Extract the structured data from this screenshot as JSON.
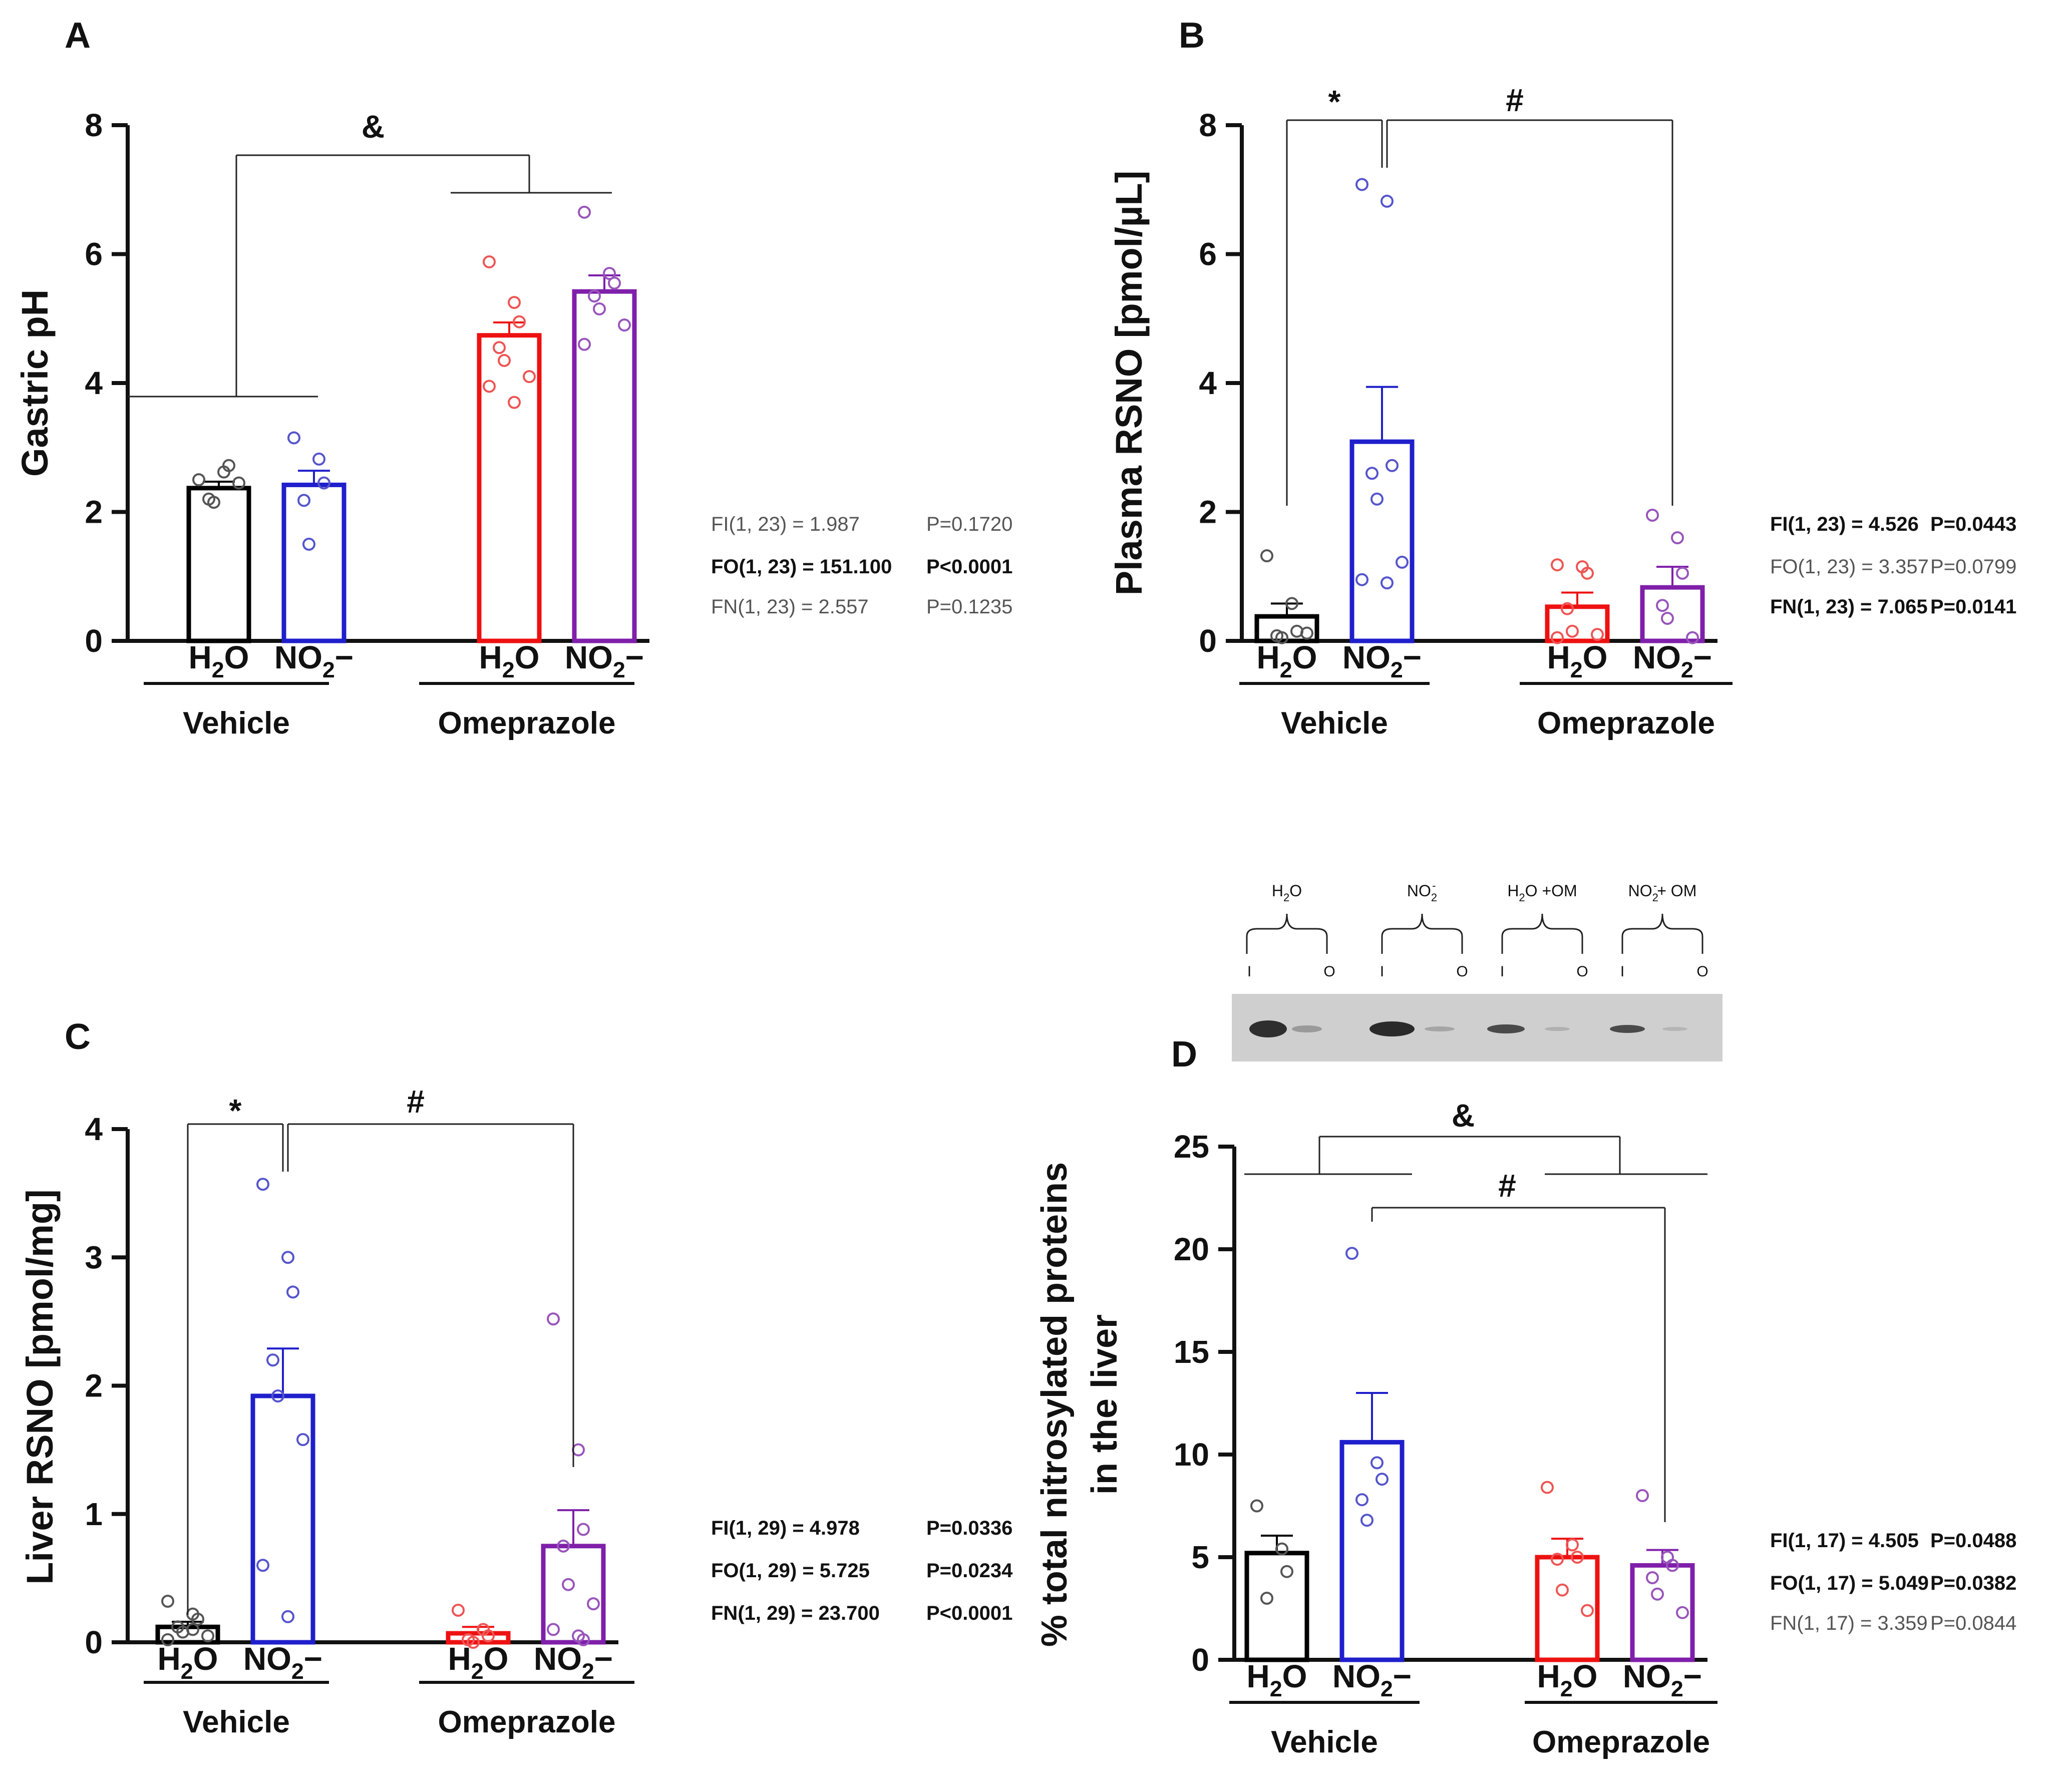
{
  "panels": [
    {
      "id": "A",
      "letter": "A",
      "ylabel": "Gastric pH",
      "yticks": [
        "0",
        "2",
        "4",
        "6",
        "8"
      ],
      "ylim": [
        0,
        8
      ],
      "groups": [
        {
          "label": "Vehicle",
          "bars": [
            {
              "label_main": "H",
              "label_sub": "2",
              "label_tail": "O"
            },
            {
              "label_main": "NO",
              "label_sub": "2",
              "label_tail": "−"
            }
          ]
        },
        {
          "label": "Omeprazole",
          "bars": [
            {
              "label_main": "H",
              "label_sub": "2",
              "label_tail": "O"
            },
            {
              "label_main": "NO",
              "label_sub": "2",
              "label_tail": "−"
            }
          ]
        }
      ],
      "significance": [
        {
          "symbol": "&"
        }
      ],
      "stats": [
        {
          "text": "FI(1, 23) = 1.987",
          "p": "P=0.1720",
          "bold": false
        },
        {
          "text": "FO(1, 23) = 151.100",
          "p": "P<0.0001",
          "bold": true
        },
        {
          "text": "FN(1, 23) = 2.557",
          "p": "P=0.1235",
          "bold": false
        }
      ]
    },
    {
      "id": "B",
      "letter": "B",
      "ylabel": "Plasma RSNO [pmol/µL]",
      "yticks": [
        "0",
        "2",
        "4",
        "6",
        "8"
      ],
      "ylim": [
        0,
        8
      ],
      "groups": [
        {
          "label": "Vehicle",
          "bars": [
            {
              "label_main": "H",
              "label_sub": "2",
              "label_tail": "O"
            },
            {
              "label_main": "NO",
              "label_sub": "2",
              "label_tail": "−"
            }
          ]
        },
        {
          "label": "Omeprazole",
          "bars": [
            {
              "label_main": "H",
              "label_sub": "2",
              "label_tail": "O"
            },
            {
              "label_main": "NO",
              "label_sub": "2",
              "label_tail": "−"
            }
          ]
        }
      ],
      "significance": [
        {
          "symbol": "*"
        },
        {
          "symbol": "#"
        }
      ],
      "stats": [
        {
          "text": "FI(1, 23) = 4.526",
          "p": "P=0.0443",
          "bold": true
        },
        {
          "text": "FO(1, 23) = 3.357",
          "p": "P=0.0799",
          "bold": false
        },
        {
          "text": "FN(1, 23) = 7.065",
          "p": "P=0.0141",
          "bold": true
        }
      ]
    },
    {
      "id": "C",
      "letter": "C",
      "ylabel": "Liver RSNO [pmol/mg]",
      "yticks": [
        "0",
        "1",
        "2",
        "3",
        "4"
      ],
      "ylim": [
        0,
        4
      ],
      "groups": [
        {
          "label": "Vehicle",
          "bars": [
            {
              "label_main": "H",
              "label_sub": "2",
              "label_tail": "O"
            },
            {
              "label_main": "NO",
              "label_sub": "2",
              "label_tail": "−"
            }
          ]
        },
        {
          "label": "Omeprazole",
          "bars": [
            {
              "label_main": "H",
              "label_sub": "2",
              "label_tail": "O"
            },
            {
              "label_main": "NO",
              "label_sub": "2",
              "label_tail": "−"
            }
          ]
        }
      ],
      "significance": [
        {
          "symbol": "*"
        },
        {
          "symbol": "#"
        }
      ],
      "stats": [
        {
          "text": "FI(1, 29) = 4.978",
          "p": "P=0.0336",
          "bold": true
        },
        {
          "text": "FO(1, 29) = 5.725",
          "p": "P=0.0234",
          "bold": true
        },
        {
          "text": "FN(1, 29) = 23.700",
          "p": "P<0.0001",
          "bold": true
        }
      ]
    },
    {
      "id": "D",
      "letter": "D",
      "ylabel_line1": "% total nitrosylated proteins",
      "ylabel_line2": "in the liver",
      "yticks": [
        "0",
        "5",
        "10",
        "15",
        "20",
        "25"
      ],
      "ylim": [
        0,
        25
      ],
      "groups": [
        {
          "label": "Vehicle",
          "bars": [
            {
              "label_main": "H",
              "label_sub": "2",
              "label_tail": "O"
            },
            {
              "label_main": "NO",
              "label_sub": "2",
              "label_tail": "−"
            }
          ]
        },
        {
          "label": "Omeprazole",
          "bars": [
            {
              "label_main": "H",
              "label_sub": "2",
              "label_tail": "O"
            },
            {
              "label_main": "NO",
              "label_sub": "2",
              "label_tail": "−"
            }
          ]
        }
      ],
      "significance": [
        {
          "symbol": "&"
        },
        {
          "symbol": "#"
        }
      ],
      "stats": [
        {
          "text": "FI(1, 17) = 4.505",
          "p": "P=0.0488",
          "bold": true
        },
        {
          "text": "FO(1, 17) = 5.049",
          "p": "P=0.0382",
          "bold": true
        },
        {
          "text": "FN(1, 17) = 3.359",
          "p": "P=0.0844",
          "bold": false
        }
      ]
    }
  ],
  "blot": {
    "lane_labels": [
      {
        "main": "H",
        "sub": "2",
        "tail": "O"
      },
      {
        "main": "NO",
        "sub": "2",
        "sup": "-",
        "tail": ""
      },
      {
        "main": "H",
        "sub": "2",
        "tail": "O +OM"
      },
      {
        "main": "NO",
        "sub": "2",
        "sup": "-",
        "tail": "+ OM"
      }
    ],
    "marks": [
      "I",
      "O",
      "I",
      "O",
      "I",
      "O",
      "I",
      "O"
    ]
  },
  "chart_data": [
    {
      "type": "bar",
      "panel": "A",
      "ylabel": "Gastric pH",
      "ylim": [
        0,
        8
      ],
      "categories": [
        "Vehicle H2O",
        "Vehicle NO2−",
        "Omeprazole H2O",
        "Omeprazole NO2−"
      ],
      "values": [
        2.37,
        2.42,
        4.74,
        5.42
      ],
      "sem": [
        0.1,
        0.22,
        0.2,
        0.25
      ],
      "points": [
        [
          2.5,
          2.62,
          2.72,
          2.2,
          2.15,
          2.45
        ],
        [
          3.15,
          2.82,
          2.45,
          2.18,
          1.5
        ],
        [
          5.88,
          5.25,
          4.95,
          4.55,
          4.35,
          4.1,
          3.95,
          3.7
        ],
        [
          6.65,
          5.7,
          5.55,
          5.35,
          5.15,
          4.9,
          4.6
        ]
      ],
      "colors": [
        "#000000",
        "#1f1fcc",
        "#ee1111",
        "#7f1faa"
      ],
      "point_colors": [
        "#555555",
        "#5555cc",
        "#ee5555",
        "#9955bb"
      ],
      "grid": false
    },
    {
      "type": "bar",
      "panel": "B",
      "ylabel": "Plasma RSNO [pmol/µL]",
      "ylim": [
        0,
        8
      ],
      "categories": [
        "Vehicle H2O",
        "Vehicle NO2−",
        "Omeprazole H2O",
        "Omeprazole NO2−"
      ],
      "values": [
        0.38,
        3.09,
        0.53,
        0.83
      ],
      "sem": [
        0.2,
        0.85,
        0.22,
        0.32
      ],
      "points": [
        [
          1.32,
          0.58,
          0.15,
          0.08,
          0.05,
          0.12
        ],
        [
          7.08,
          6.82,
          2.72,
          2.6,
          2.2,
          1.22,
          0.95,
          0.9
        ],
        [
          1.18,
          1.15,
          1.05,
          0.5,
          0.15,
          0.1,
          0.05
        ],
        [
          1.95,
          1.6,
          1.05,
          0.55,
          0.35,
          0.05
        ]
      ],
      "colors": [
        "#000000",
        "#1f1fcc",
        "#ee1111",
        "#7f1faa"
      ],
      "point_colors": [
        "#555555",
        "#5555cc",
        "#ee5555",
        "#9955bb"
      ],
      "grid": false
    },
    {
      "type": "bar",
      "panel": "C",
      "ylabel": "Liver RSNO [pmol/mg]",
      "ylim": [
        0,
        4
      ],
      "categories": [
        "Vehicle H2O",
        "Vehicle NO2−",
        "Omeprazole H2O",
        "Omeprazole NO2−"
      ],
      "values": [
        0.12,
        1.92,
        0.07,
        0.75
      ],
      "sem": [
        0.04,
        0.37,
        0.05,
        0.28
      ],
      "points": [
        [
          0.32,
          0.22,
          0.18,
          0.12,
          0.08,
          0.05,
          0.02,
          0.1
        ],
        [
          3.57,
          3.0,
          2.73,
          2.2,
          1.92,
          1.58,
          0.6,
          0.2
        ],
        [
          0.25,
          0.1,
          0.05,
          0.02,
          0.0
        ],
        [
          2.52,
          1.5,
          0.88,
          0.75,
          0.45,
          0.3,
          0.1,
          0.05,
          0.02
        ]
      ],
      "colors": [
        "#000000",
        "#1f1fcc",
        "#ee1111",
        "#7f1faa"
      ],
      "point_colors": [
        "#555555",
        "#5555cc",
        "#ee5555",
        "#9955bb"
      ],
      "grid": false
    },
    {
      "type": "bar",
      "panel": "D",
      "ylabel": "% total nitrosylated proteins in the liver",
      "ylim": [
        0,
        25
      ],
      "categories": [
        "Vehicle H2O",
        "Vehicle NO2−",
        "Omeprazole H2O",
        "Omeprazole NO2−"
      ],
      "values": [
        5.2,
        10.6,
        5.0,
        4.6
      ],
      "sem": [
        0.85,
        2.4,
        0.9,
        0.75
      ],
      "points": [
        [
          7.5,
          5.4,
          4.3,
          3.0
        ],
        [
          19.8,
          9.6,
          8.8,
          7.8,
          6.8
        ],
        [
          8.4,
          5.6,
          5.0,
          4.9,
          3.4,
          2.4
        ],
        [
          8.0,
          5.0,
          4.6,
          4.0,
          3.2,
          2.3
        ]
      ],
      "colors": [
        "#000000",
        "#1f1fcc",
        "#ee1111",
        "#7f1faa"
      ],
      "point_colors": [
        "#555555",
        "#5555cc",
        "#ee5555",
        "#9955bb"
      ],
      "grid": false
    }
  ]
}
